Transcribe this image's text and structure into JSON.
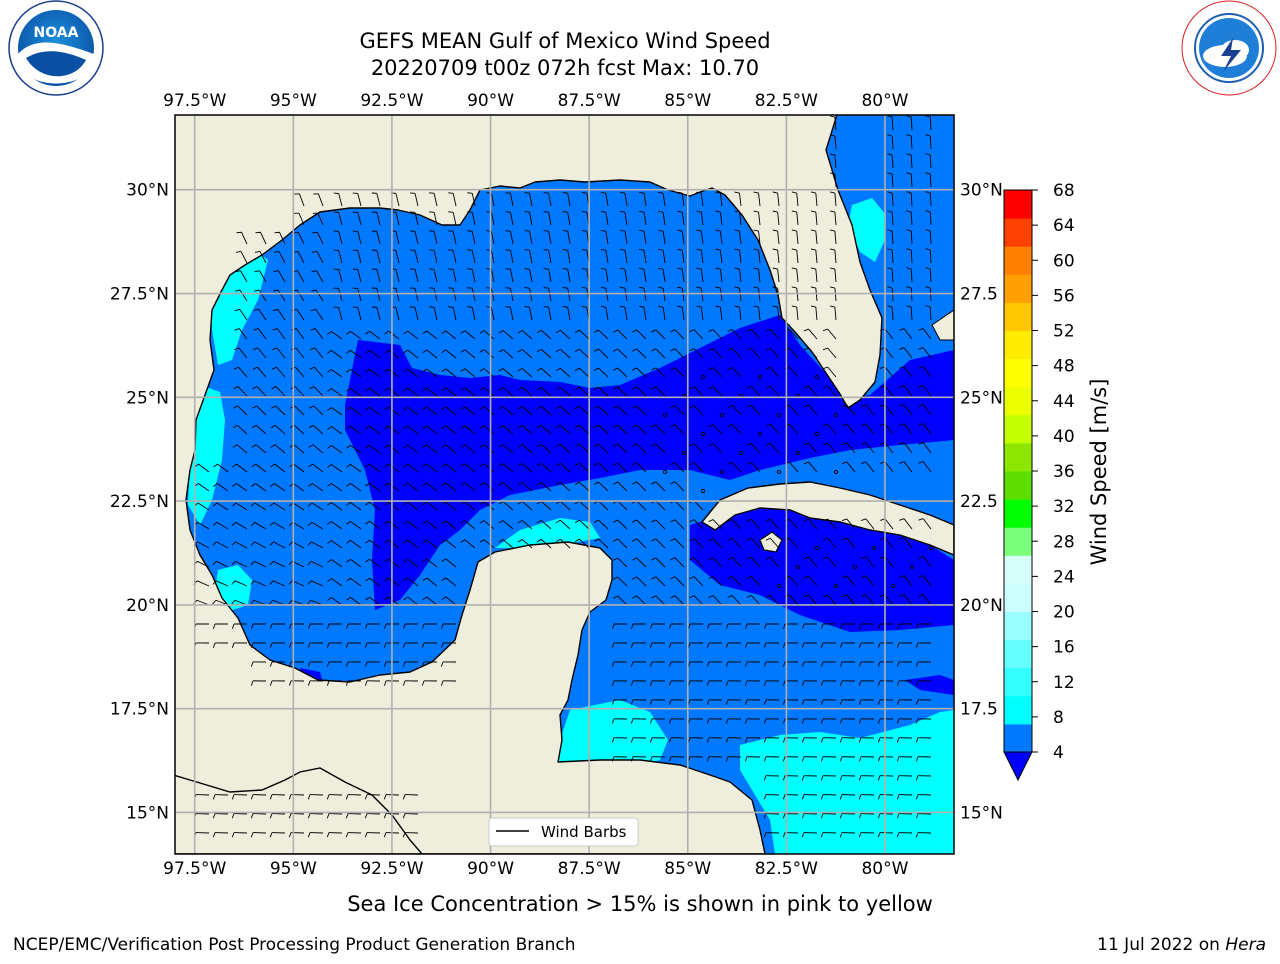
{
  "title_line1": "GEFS MEAN Gulf of Mexico Wind Speed",
  "title_line2": "20220709 t00z 072h fcst   Max: 10.70",
  "logos": {
    "left": "noaa-logo",
    "right": "national-weather-service-logo"
  },
  "map": {
    "lon_ticks": [
      "97.5°W",
      "95°W",
      "92.5°W",
      "90°W",
      "87.5°W",
      "85°W",
      "82.5°W",
      "80°W"
    ],
    "lon_values": [
      -97.5,
      -95,
      -92.5,
      -90,
      -87.5,
      -85,
      -82.5,
      -80
    ],
    "lat_ticks": [
      "30°N",
      "27.5°N",
      "25°N",
      "22.5°N",
      "20°N",
      "17.5°N",
      "15°N"
    ],
    "lat_values": [
      30,
      27.5,
      25,
      22.5,
      20,
      17.5,
      15
    ],
    "lat_ticks_right": [
      "30°N",
      "27.5",
      "25°N",
      "22.5",
      "20°N",
      "17.5",
      "15°N"
    ],
    "lon_range": [
      -98,
      -78.25
    ],
    "lat_range": [
      14,
      31.8
    ],
    "legend_label": "Wind Barbs",
    "legend_position": "bottom-center",
    "grid": true
  },
  "colorbar": {
    "label": "Wind Speed [m/s]",
    "ticks": [
      "68",
      "64",
      "60",
      "56",
      "52",
      "48",
      "44",
      "40",
      "36",
      "32",
      "28",
      "24",
      "20",
      "16",
      "12",
      "8",
      "4"
    ],
    "bounds": [
      4,
      8,
      10,
      12,
      14,
      16,
      18,
      20,
      24,
      28,
      32,
      36,
      40,
      44,
      48,
      52,
      56,
      60,
      64,
      68
    ],
    "colors": [
      "#0079ff",
      "#00ffff",
      "#33ffff",
      "#66ffff",
      "#99ffff",
      "#ccffff",
      "#d7fffa",
      "#7cff7c",
      "#00ff00",
      "#5ddd00",
      "#8ce600",
      "#c4ff00",
      "#ebff00",
      "#ffff00",
      "#ffec00",
      "#ffc700",
      "#ffa000",
      "#ff8000",
      "#ff4000",
      "#ff0000"
    ],
    "under_color": "#0000ff"
  },
  "subtitle": "Sea Ice Concentration > 15% is shown in pink to yellow",
  "footer_left": "NCEP/EMC/Verification Post Processing Product Generation Branch",
  "footer_right_date": "11 Jul 2022 on ",
  "footer_right_host": "Hera",
  "colors": {
    "land": "#efeedc",
    "under4": "#0000ff",
    "band_4_8": "#0079ff",
    "band_8_12": "#00ffff",
    "grid": "#b0b0b0"
  }
}
